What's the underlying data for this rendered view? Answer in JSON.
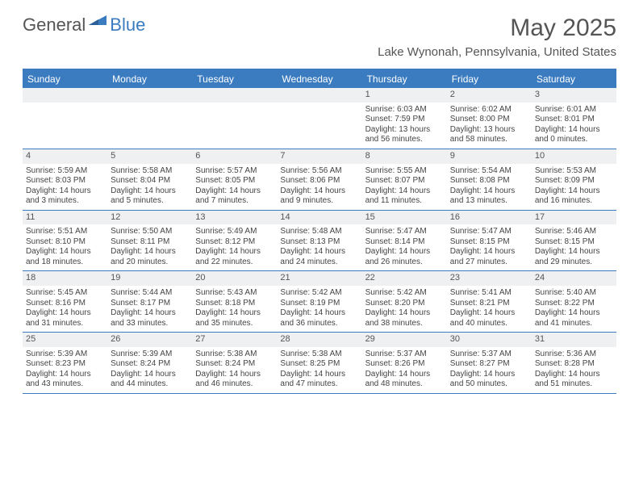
{
  "brand": {
    "part1": "General",
    "part2": "Blue"
  },
  "title": "May 2025",
  "location": "Lake Wynonah, Pennsylvania, United States",
  "colors": {
    "accent": "#3b7bbf",
    "day_header_bg": "#eef0f2",
    "text": "#555555",
    "body_bg": "#ffffff"
  },
  "dow": [
    "Sunday",
    "Monday",
    "Tuesday",
    "Wednesday",
    "Thursday",
    "Friday",
    "Saturday"
  ],
  "weeks": [
    [
      null,
      null,
      null,
      null,
      {
        "n": "1",
        "sr": "Sunrise: 6:03 AM",
        "ss": "Sunset: 7:59 PM",
        "d1": "Daylight: 13 hours",
        "d2": "and 56 minutes."
      },
      {
        "n": "2",
        "sr": "Sunrise: 6:02 AM",
        "ss": "Sunset: 8:00 PM",
        "d1": "Daylight: 13 hours",
        "d2": "and 58 minutes."
      },
      {
        "n": "3",
        "sr": "Sunrise: 6:01 AM",
        "ss": "Sunset: 8:01 PM",
        "d1": "Daylight: 14 hours",
        "d2": "and 0 minutes."
      }
    ],
    [
      {
        "n": "4",
        "sr": "Sunrise: 5:59 AM",
        "ss": "Sunset: 8:03 PM",
        "d1": "Daylight: 14 hours",
        "d2": "and 3 minutes."
      },
      {
        "n": "5",
        "sr": "Sunrise: 5:58 AM",
        "ss": "Sunset: 8:04 PM",
        "d1": "Daylight: 14 hours",
        "d2": "and 5 minutes."
      },
      {
        "n": "6",
        "sr": "Sunrise: 5:57 AM",
        "ss": "Sunset: 8:05 PM",
        "d1": "Daylight: 14 hours",
        "d2": "and 7 minutes."
      },
      {
        "n": "7",
        "sr": "Sunrise: 5:56 AM",
        "ss": "Sunset: 8:06 PM",
        "d1": "Daylight: 14 hours",
        "d2": "and 9 minutes."
      },
      {
        "n": "8",
        "sr": "Sunrise: 5:55 AM",
        "ss": "Sunset: 8:07 PM",
        "d1": "Daylight: 14 hours",
        "d2": "and 11 minutes."
      },
      {
        "n": "9",
        "sr": "Sunrise: 5:54 AM",
        "ss": "Sunset: 8:08 PM",
        "d1": "Daylight: 14 hours",
        "d2": "and 13 minutes."
      },
      {
        "n": "10",
        "sr": "Sunrise: 5:53 AM",
        "ss": "Sunset: 8:09 PM",
        "d1": "Daylight: 14 hours",
        "d2": "and 16 minutes."
      }
    ],
    [
      {
        "n": "11",
        "sr": "Sunrise: 5:51 AM",
        "ss": "Sunset: 8:10 PM",
        "d1": "Daylight: 14 hours",
        "d2": "and 18 minutes."
      },
      {
        "n": "12",
        "sr": "Sunrise: 5:50 AM",
        "ss": "Sunset: 8:11 PM",
        "d1": "Daylight: 14 hours",
        "d2": "and 20 minutes."
      },
      {
        "n": "13",
        "sr": "Sunrise: 5:49 AM",
        "ss": "Sunset: 8:12 PM",
        "d1": "Daylight: 14 hours",
        "d2": "and 22 minutes."
      },
      {
        "n": "14",
        "sr": "Sunrise: 5:48 AM",
        "ss": "Sunset: 8:13 PM",
        "d1": "Daylight: 14 hours",
        "d2": "and 24 minutes."
      },
      {
        "n": "15",
        "sr": "Sunrise: 5:47 AM",
        "ss": "Sunset: 8:14 PM",
        "d1": "Daylight: 14 hours",
        "d2": "and 26 minutes."
      },
      {
        "n": "16",
        "sr": "Sunrise: 5:47 AM",
        "ss": "Sunset: 8:15 PM",
        "d1": "Daylight: 14 hours",
        "d2": "and 27 minutes."
      },
      {
        "n": "17",
        "sr": "Sunrise: 5:46 AM",
        "ss": "Sunset: 8:15 PM",
        "d1": "Daylight: 14 hours",
        "d2": "and 29 minutes."
      }
    ],
    [
      {
        "n": "18",
        "sr": "Sunrise: 5:45 AM",
        "ss": "Sunset: 8:16 PM",
        "d1": "Daylight: 14 hours",
        "d2": "and 31 minutes."
      },
      {
        "n": "19",
        "sr": "Sunrise: 5:44 AM",
        "ss": "Sunset: 8:17 PM",
        "d1": "Daylight: 14 hours",
        "d2": "and 33 minutes."
      },
      {
        "n": "20",
        "sr": "Sunrise: 5:43 AM",
        "ss": "Sunset: 8:18 PM",
        "d1": "Daylight: 14 hours",
        "d2": "and 35 minutes."
      },
      {
        "n": "21",
        "sr": "Sunrise: 5:42 AM",
        "ss": "Sunset: 8:19 PM",
        "d1": "Daylight: 14 hours",
        "d2": "and 36 minutes."
      },
      {
        "n": "22",
        "sr": "Sunrise: 5:42 AM",
        "ss": "Sunset: 8:20 PM",
        "d1": "Daylight: 14 hours",
        "d2": "and 38 minutes."
      },
      {
        "n": "23",
        "sr": "Sunrise: 5:41 AM",
        "ss": "Sunset: 8:21 PM",
        "d1": "Daylight: 14 hours",
        "d2": "and 40 minutes."
      },
      {
        "n": "24",
        "sr": "Sunrise: 5:40 AM",
        "ss": "Sunset: 8:22 PM",
        "d1": "Daylight: 14 hours",
        "d2": "and 41 minutes."
      }
    ],
    [
      {
        "n": "25",
        "sr": "Sunrise: 5:39 AM",
        "ss": "Sunset: 8:23 PM",
        "d1": "Daylight: 14 hours",
        "d2": "and 43 minutes."
      },
      {
        "n": "26",
        "sr": "Sunrise: 5:39 AM",
        "ss": "Sunset: 8:24 PM",
        "d1": "Daylight: 14 hours",
        "d2": "and 44 minutes."
      },
      {
        "n": "27",
        "sr": "Sunrise: 5:38 AM",
        "ss": "Sunset: 8:24 PM",
        "d1": "Daylight: 14 hours",
        "d2": "and 46 minutes."
      },
      {
        "n": "28",
        "sr": "Sunrise: 5:38 AM",
        "ss": "Sunset: 8:25 PM",
        "d1": "Daylight: 14 hours",
        "d2": "and 47 minutes."
      },
      {
        "n": "29",
        "sr": "Sunrise: 5:37 AM",
        "ss": "Sunset: 8:26 PM",
        "d1": "Daylight: 14 hours",
        "d2": "and 48 minutes."
      },
      {
        "n": "30",
        "sr": "Sunrise: 5:37 AM",
        "ss": "Sunset: 8:27 PM",
        "d1": "Daylight: 14 hours",
        "d2": "and 50 minutes."
      },
      {
        "n": "31",
        "sr": "Sunrise: 5:36 AM",
        "ss": "Sunset: 8:28 PM",
        "d1": "Daylight: 14 hours",
        "d2": "and 51 minutes."
      }
    ]
  ]
}
